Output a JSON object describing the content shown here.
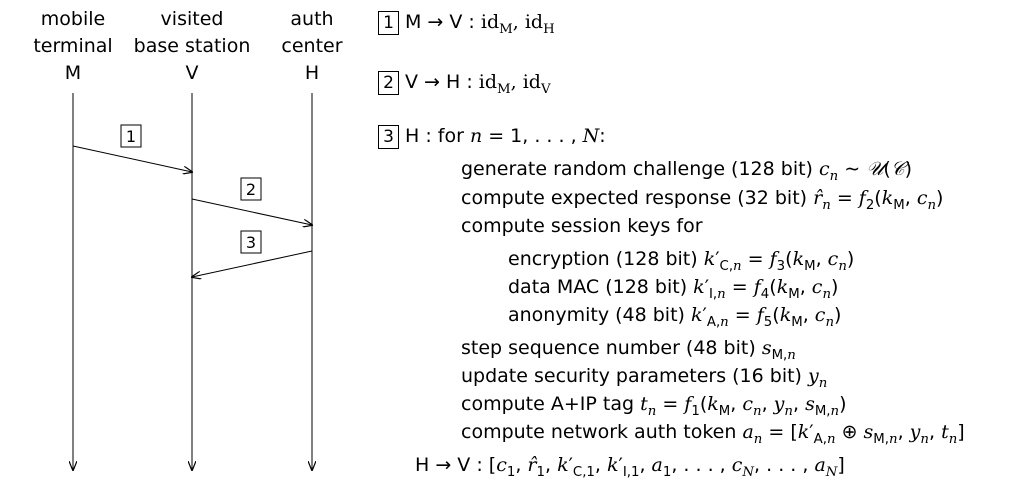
{
  "parties": [
    {
      "line1": "mobile",
      "line2": "terminal",
      "symbol": "M"
    },
    {
      "line1": "visited",
      "line2": "base station",
      "symbol": "V"
    },
    {
      "line1": "auth",
      "line2": "center",
      "symbol": "H"
    }
  ],
  "arrow_labels": [
    "1",
    "2",
    "3"
  ],
  "steps": {
    "s1": {
      "num": "1",
      "text": "M → V :  id",
      "sub1": "M",
      "mid": ", id",
      "sub2": "H"
    },
    "s2": {
      "num": "2",
      "text": "V → H :  id",
      "sub1": "M",
      "mid": ", id",
      "sub2": "V"
    },
    "s3": {
      "num": "3",
      "head": "H :  for ",
      "loop": "n = 1, . . . , N :"
    }
  },
  "lines": {
    "gen": "generate random challenge (128 bit) ",
    "gen_math": "cₙ ∼ 𝒰(𝒞)",
    "resp": "compute expected response (32 bit) ",
    "resp_math": "r̂ₙ = f₂(k",
    "keys": "compute session keys for",
    "enc": "encryption (128 bit) ",
    "enc_math": "k′",
    "mac": "data MAC (128 bit) ",
    "anon": "anonymity (48 bit) ",
    "seq": "step sequence number (48 bit) ",
    "upd": "update security parameters (16 bit) ",
    "tag": "compute A+IP tag ",
    "tok": "compute network auth token ",
    "final": "H → V :  "
  }
}
